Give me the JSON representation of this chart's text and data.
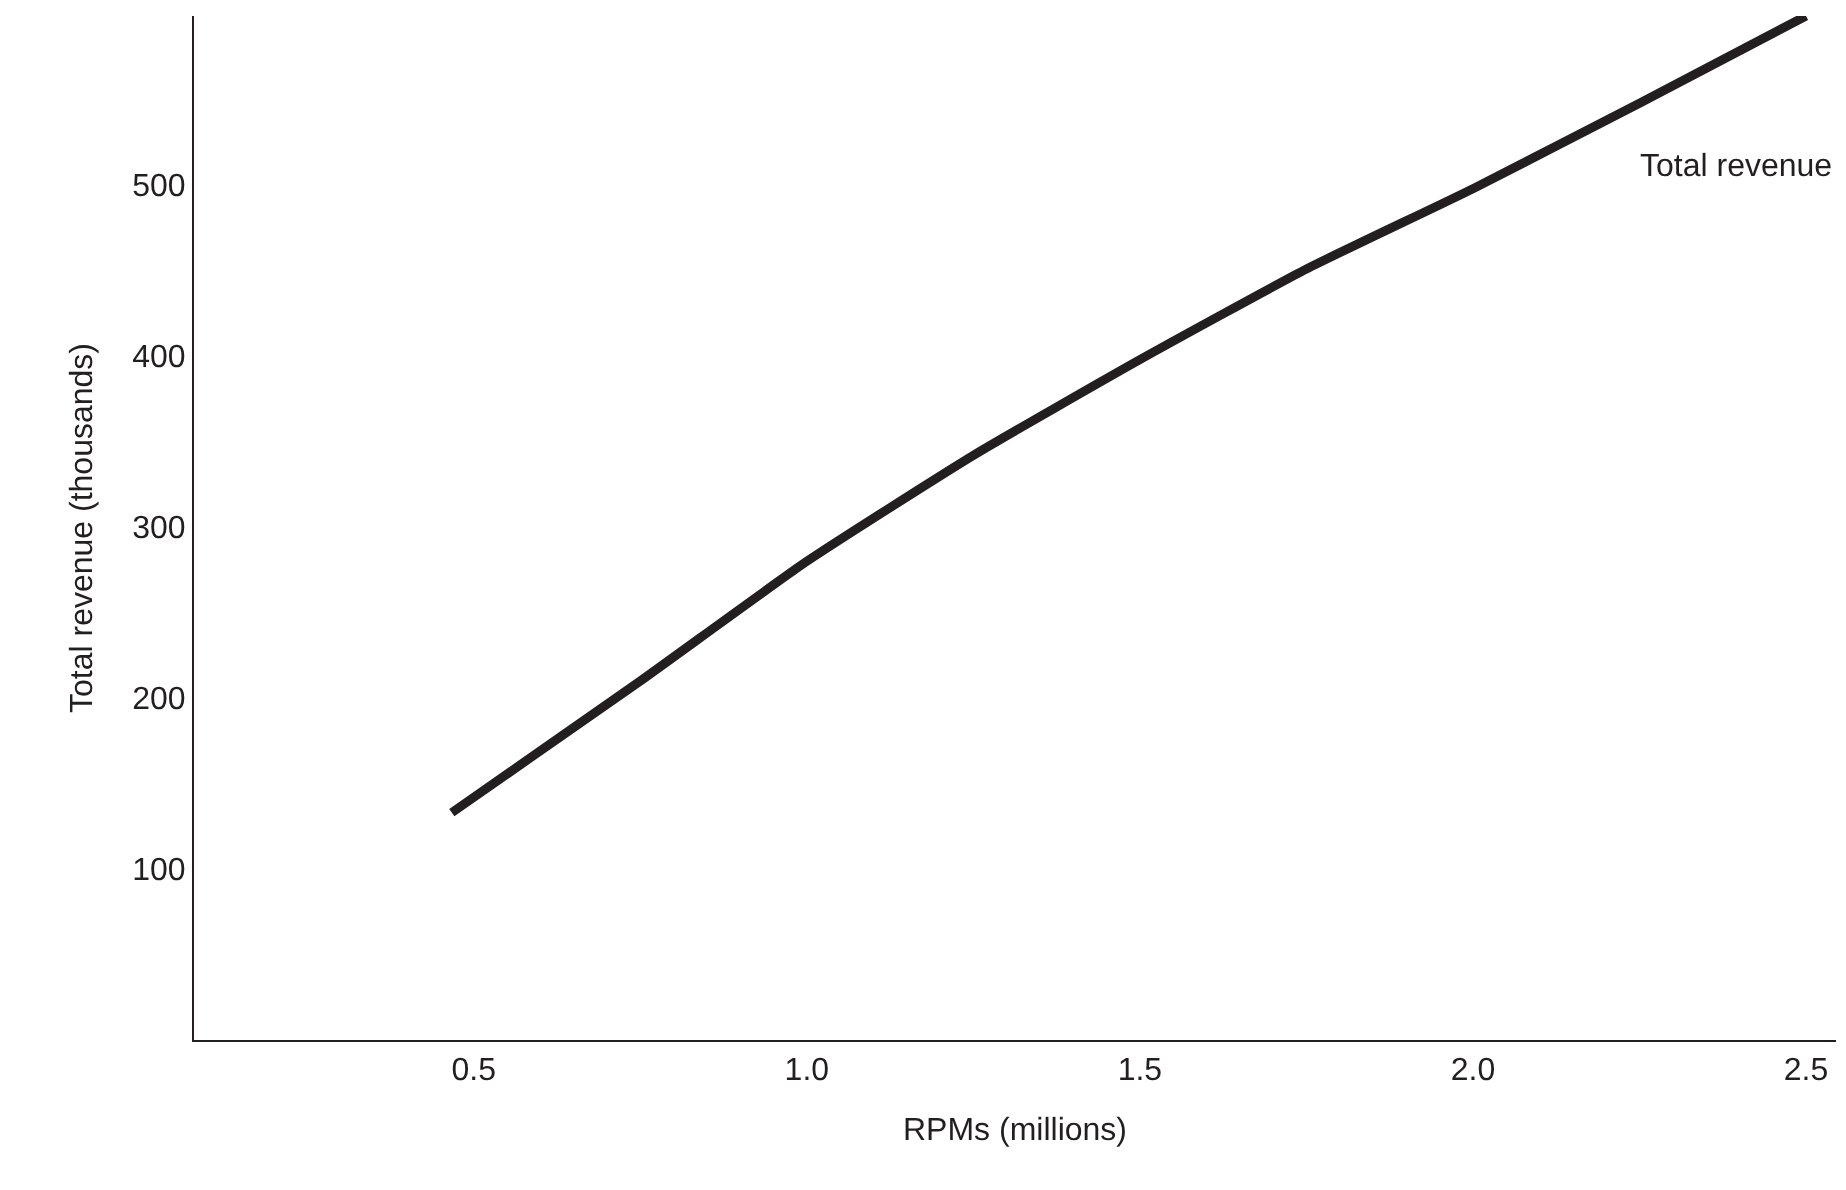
{
  "chart_data": {
    "type": "line",
    "xlabel": "RPMs (millions)",
    "ylabel": "Total revenue (thousands)",
    "xlim": [
      0.08,
      2.545
    ],
    "ylim": [
      0,
      599
    ],
    "xticks": [
      {
        "value": 0.5,
        "label": "0.5"
      },
      {
        "value": 1.0,
        "label": "1.0"
      },
      {
        "value": 1.5,
        "label": "1.5"
      },
      {
        "value": 2.0,
        "label": "2.0"
      },
      {
        "value": 2.5,
        "label": "2.5"
      }
    ],
    "yticks": [
      100,
      200,
      300,
      400,
      500
    ],
    "legend": false,
    "marker": "none",
    "line_style": "solid",
    "series": [
      {
        "name": "Total revenue",
        "color": "#231f20",
        "x": [
          0.467,
          0.75,
          1.0,
          1.25,
          1.5,
          1.75,
          2.0,
          2.25,
          2.5
        ],
        "values": [
          133,
          210,
          280,
          342,
          398,
          451,
          498,
          548,
          599
        ]
      }
    ]
  }
}
